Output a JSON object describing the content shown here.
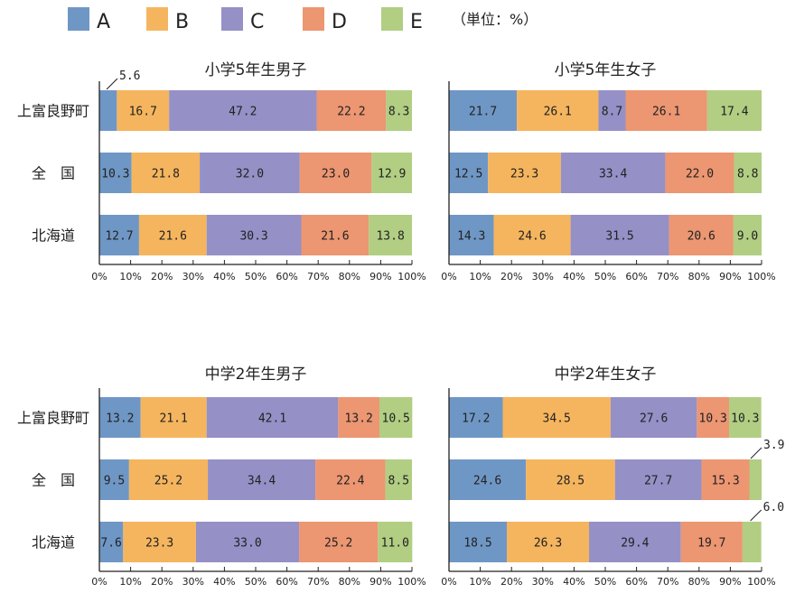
{
  "legend": {
    "items": [
      {
        "key": "A",
        "color": "#6f97c5"
      },
      {
        "key": "B",
        "color": "#f5b55e"
      },
      {
        "key": "C",
        "color": "#9590c6"
      },
      {
        "key": "D",
        "color": "#ec9672"
      },
      {
        "key": "E",
        "color": "#b1ce83"
      }
    ],
    "unit_note": "（単位：%）"
  },
  "ticks": [
    "0%",
    "10%",
    "20%",
    "30%",
    "40%",
    "50%",
    "60%",
    "70%",
    "80%",
    "90%",
    "100%"
  ],
  "chart_data": [
    {
      "type": "bar",
      "stacked": true,
      "orientation": "horizontal",
      "title": "小学5年生男子",
      "categories": [
        "上富良野町",
        "全　国",
        "北海道"
      ],
      "series": [
        {
          "name": "A",
          "values": [
            5.6,
            10.3,
            12.7
          ]
        },
        {
          "name": "B",
          "values": [
            16.7,
            21.8,
            21.6
          ]
        },
        {
          "name": "C",
          "values": [
            47.2,
            32.0,
            30.3
          ]
        },
        {
          "name": "D",
          "values": [
            22.2,
            23.0,
            21.6
          ]
        },
        {
          "name": "E",
          "values": [
            8.3,
            12.9,
            13.8
          ]
        }
      ],
      "xlim": [
        0,
        100
      ]
    },
    {
      "type": "bar",
      "stacked": true,
      "orientation": "horizontal",
      "title": "小学5年生女子",
      "categories": [
        "上富良野町",
        "全　国",
        "北海道"
      ],
      "series": [
        {
          "name": "A",
          "values": [
            21.7,
            12.5,
            14.3
          ]
        },
        {
          "name": "B",
          "values": [
            26.1,
            23.3,
            24.6
          ]
        },
        {
          "name": "C",
          "values": [
            8.7,
            33.4,
            31.5
          ]
        },
        {
          "name": "D",
          "values": [
            26.1,
            22.0,
            20.6
          ]
        },
        {
          "name": "E",
          "values": [
            17.4,
            8.8,
            9.0
          ]
        }
      ],
      "xlim": [
        0,
        100
      ]
    },
    {
      "type": "bar",
      "stacked": true,
      "orientation": "horizontal",
      "title": "中学2年生男子",
      "categories": [
        "上富良野町",
        "全　国",
        "北海道"
      ],
      "series": [
        {
          "name": "A",
          "values": [
            13.2,
            9.5,
            7.6
          ]
        },
        {
          "name": "B",
          "values": [
            21.1,
            25.2,
            23.3
          ]
        },
        {
          "name": "C",
          "values": [
            42.1,
            34.4,
            33.0
          ]
        },
        {
          "name": "D",
          "values": [
            13.2,
            22.4,
            25.2
          ]
        },
        {
          "name": "E",
          "values": [
            10.5,
            8.5,
            11.0
          ]
        }
      ],
      "xlim": [
        0,
        100
      ]
    },
    {
      "type": "bar",
      "stacked": true,
      "orientation": "horizontal",
      "title": "中学2年生女子",
      "categories": [
        "上富良野町",
        "全　国",
        "北海道"
      ],
      "series": [
        {
          "name": "A",
          "values": [
            17.2,
            24.6,
            18.5
          ]
        },
        {
          "name": "B",
          "values": [
            34.5,
            28.5,
            26.3
          ]
        },
        {
          "name": "C",
          "values": [
            27.6,
            27.7,
            29.4
          ]
        },
        {
          "name": "D",
          "values": [
            10.3,
            15.3,
            19.7
          ]
        },
        {
          "name": "E",
          "values": [
            10.3,
            3.9,
            6.0
          ]
        }
      ],
      "xlim": [
        0,
        100
      ]
    }
  ]
}
